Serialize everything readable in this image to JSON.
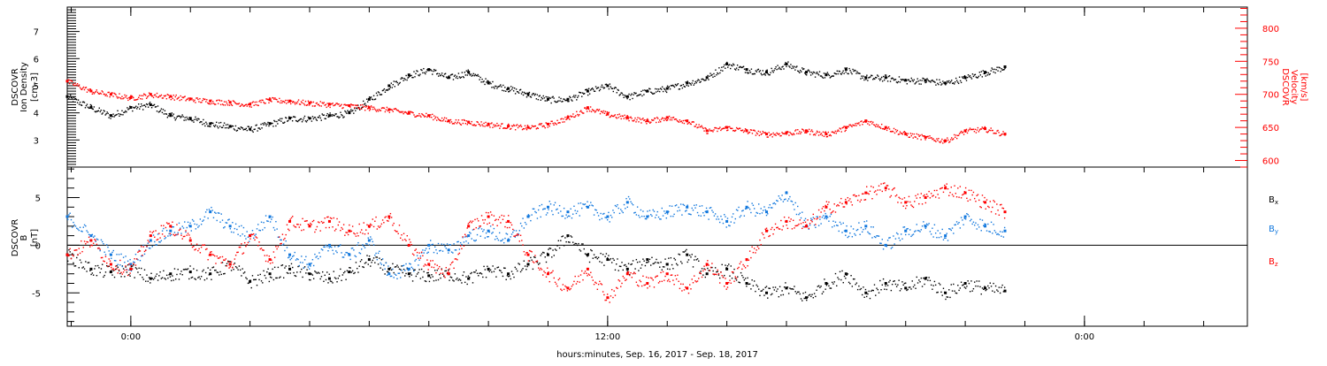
{
  "chart_data": {
    "x_axis": {
      "title": "hours:minutes, Sep. 16, 2017 - Sep. 18, 2017",
      "range_hours": [
        -1.6,
        28.1
      ],
      "ticks": [
        {
          "hour": 0,
          "label": "0:00"
        },
        {
          "hour": 12,
          "label": "12:00"
        },
        {
          "hour": 24,
          "label": "0:00"
        }
      ]
    },
    "panels": [
      {
        "type": "scatter",
        "id": "ion-density-velocity",
        "left_axis": {
          "label_lines": [
            "DSCOVR",
            "Ion Density",
            "[cm-3]"
          ],
          "range": [
            2.0,
            7.9
          ],
          "ticks": [
            3,
            4,
            5,
            6,
            7
          ],
          "color": "#000000"
        },
        "right_axis": {
          "label_lines": [
            "DSCOVR",
            "Velocity",
            "[km/s]"
          ],
          "range": [
            590,
            832
          ],
          "ticks": [
            600,
            650,
            700,
            750,
            800
          ],
          "color": "#ff0000"
        },
        "series": [
          {
            "name": "Ion Density",
            "axis": "left",
            "color": "#000000",
            "x": [
              -1.6,
              -1.0,
              -0.5,
              0.0,
              0.5,
              1.0,
              1.5,
              2.0,
              2.5,
              3.0,
              3.5,
              4.0,
              4.5,
              5.0,
              5.5,
              6.0,
              6.5,
              7.0,
              7.5,
              8.0,
              8.5,
              9.0,
              9.5,
              10.0,
              10.5,
              11.0,
              11.5,
              12.0,
              12.5,
              13.0,
              13.5,
              14.0,
              14.5,
              15.0,
              15.5,
              16.0,
              16.5,
              17.0,
              17.5,
              18.0,
              18.5,
              19.0,
              19.5,
              20.0,
              20.5,
              21.0,
              21.5,
              22.0
            ],
            "y": [
              4.6,
              4.2,
              3.9,
              4.2,
              4.3,
              3.9,
              3.8,
              3.6,
              3.5,
              3.4,
              3.6,
              3.8,
              3.8,
              3.9,
              4.0,
              4.5,
              5.0,
              5.4,
              5.6,
              5.3,
              5.5,
              5.1,
              4.9,
              4.7,
              4.5,
              4.5,
              4.8,
              5.0,
              4.6,
              4.8,
              4.9,
              5.1,
              5.3,
              5.8,
              5.6,
              5.5,
              5.8,
              5.5,
              5.4,
              5.6,
              5.3,
              5.3,
              5.2,
              5.2,
              5.1,
              5.3,
              5.5,
              5.7
            ]
          },
          {
            "name": "Velocity",
            "axis": "right",
            "color": "#ff0000",
            "x": [
              -1.6,
              -1.0,
              -0.5,
              0.0,
              0.5,
              1.0,
              1.5,
              2.0,
              2.5,
              3.0,
              3.5,
              4.0,
              4.5,
              5.0,
              5.5,
              6.0,
              6.5,
              7.0,
              7.5,
              8.0,
              8.5,
              9.0,
              9.5,
              10.0,
              10.5,
              11.0,
              11.5,
              12.0,
              12.5,
              13.0,
              13.5,
              14.0,
              14.5,
              15.0,
              15.5,
              16.0,
              16.5,
              17.0,
              17.5,
              18.0,
              18.5,
              19.0,
              19.5,
              20.0,
              20.5,
              21.0,
              21.5,
              22.0
            ],
            "y": [
              720,
              705,
              700,
              695,
              700,
              697,
              693,
              690,
              688,
              685,
              692,
              690,
              687,
              685,
              683,
              680,
              677,
              672,
              668,
              660,
              658,
              655,
              652,
              650,
              655,
              665,
              680,
              670,
              665,
              660,
              665,
              660,
              645,
              650,
              645,
              640,
              642,
              645,
              640,
              650,
              660,
              650,
              640,
              635,
              630,
              645,
              648,
              640
            ]
          }
        ]
      },
      {
        "type": "scatter",
        "id": "magnetic-field",
        "left_axis": {
          "label_lines": [
            "DSCOVR",
            "B",
            "[nT]"
          ],
          "range": [
            -8.5,
            8.2
          ],
          "ticks": [
            -5,
            0,
            5
          ],
          "color": "#000000"
        },
        "zero_line": true,
        "legend_placement": "right",
        "series": [
          {
            "name": "Bx",
            "label_main": "B",
            "label_sub": "x",
            "color": "#000000",
            "x": [
              -1.6,
              -1.0,
              -0.5,
              0.0,
              0.5,
              1.0,
              1.5,
              2.0,
              2.5,
              3.0,
              3.5,
              4.0,
              4.5,
              5.0,
              5.5,
              6.0,
              6.5,
              7.0,
              7.5,
              8.0,
              8.5,
              9.0,
              9.5,
              10.0,
              10.5,
              11.0,
              11.5,
              12.0,
              12.5,
              13.0,
              13.5,
              14.0,
              14.5,
              15.0,
              15.5,
              16.0,
              16.5,
              17.0,
              17.5,
              18.0,
              18.5,
              19.0,
              19.5,
              20.0,
              20.5,
              21.0,
              21.5,
              22.0
            ],
            "y": [
              -1.0,
              -2.5,
              -2.8,
              -2.5,
              -3.5,
              -3.0,
              -2.8,
              -3.0,
              -2.0,
              -3.8,
              -3.0,
              -2.5,
              -3.0,
              -3.5,
              -2.8,
              -1.5,
              -2.5,
              -3.0,
              -3.2,
              -3.0,
              -3.5,
              -2.5,
              -3.0,
              -2.0,
              -1.0,
              1.0,
              -1.0,
              -1.5,
              -2.5,
              -1.5,
              -2.0,
              -1.0,
              -3.0,
              -2.5,
              -4.0,
              -5.0,
              -4.5,
              -5.5,
              -4.0,
              -3.0,
              -5.0,
              -4.0,
              -4.5,
              -3.5,
              -5.0,
              -4.0,
              -4.5,
              -4.8
            ]
          },
          {
            "name": "By",
            "label_main": "B",
            "label_sub": "y",
            "color": "#1177dd",
            "x": [
              -1.6,
              -1.0,
              -0.5,
              0.0,
              0.5,
              1.0,
              1.5,
              2.0,
              2.5,
              3.0,
              3.5,
              4.0,
              4.5,
              5.0,
              5.5,
              6.0,
              6.5,
              7.0,
              7.5,
              8.0,
              8.5,
              9.0,
              9.5,
              10.0,
              10.5,
              11.0,
              11.5,
              12.0,
              12.5,
              13.0,
              13.5,
              14.0,
              14.5,
              15.0,
              15.5,
              16.0,
              16.5,
              17.0,
              17.5,
              18.0,
              18.5,
              19.0,
              19.5,
              20.0,
              20.5,
              21.0,
              21.5,
              22.0
            ],
            "y": [
              3.0,
              1.0,
              -1.0,
              -2.0,
              0.5,
              1.5,
              2.0,
              3.5,
              2.0,
              1.0,
              3.0,
              -1.0,
              -2.0,
              0.0,
              -1.0,
              0.5,
              -3.0,
              -2.5,
              0.0,
              -0.5,
              1.0,
              1.5,
              0.5,
              3.0,
              4.0,
              3.5,
              4.0,
              3.0,
              4.5,
              3.0,
              3.5,
              4.0,
              3.5,
              2.5,
              4.0,
              3.5,
              5.5,
              2.0,
              3.0,
              1.5,
              2.0,
              0.0,
              1.5,
              2.0,
              1.0,
              3.0,
              2.0,
              1.5
            ]
          },
          {
            "name": "Bz",
            "label_main": "B",
            "label_sub": "z",
            "color": "#ff0000",
            "x": [
              -1.6,
              -1.0,
              -0.5,
              0.0,
              0.5,
              1.0,
              1.5,
              2.0,
              2.5,
              3.0,
              3.5,
              4.0,
              4.5,
              5.0,
              5.5,
              6.0,
              6.5,
              7.0,
              7.5,
              8.0,
              8.5,
              9.0,
              9.5,
              10.0,
              10.5,
              11.0,
              11.5,
              12.0,
              12.5,
              13.0,
              13.5,
              14.0,
              14.5,
              15.0,
              15.5,
              16.0,
              16.5,
              17.0,
              17.5,
              18.0,
              18.5,
              19.0,
              19.5,
              20.0,
              20.5,
              21.0,
              21.5,
              22.0
            ],
            "y": [
              -1.0,
              0.5,
              -2.0,
              -2.5,
              1.0,
              2.0,
              0.5,
              -1.0,
              -2.0,
              1.0,
              -1.5,
              2.5,
              2.0,
              2.5,
              1.5,
              2.0,
              3.0,
              0.0,
              -2.0,
              -3.0,
              2.0,
              3.0,
              2.5,
              -1.0,
              -3.0,
              -4.5,
              -2.5,
              -5.5,
              -3.0,
              -4.0,
              -3.0,
              -4.5,
              -2.0,
              -4.0,
              -1.5,
              1.5,
              2.5,
              2.0,
              4.0,
              4.5,
              5.5,
              6.0,
              4.5,
              5.0,
              6.0,
              5.5,
              4.5,
              3.5
            ]
          }
        ]
      }
    ]
  }
}
